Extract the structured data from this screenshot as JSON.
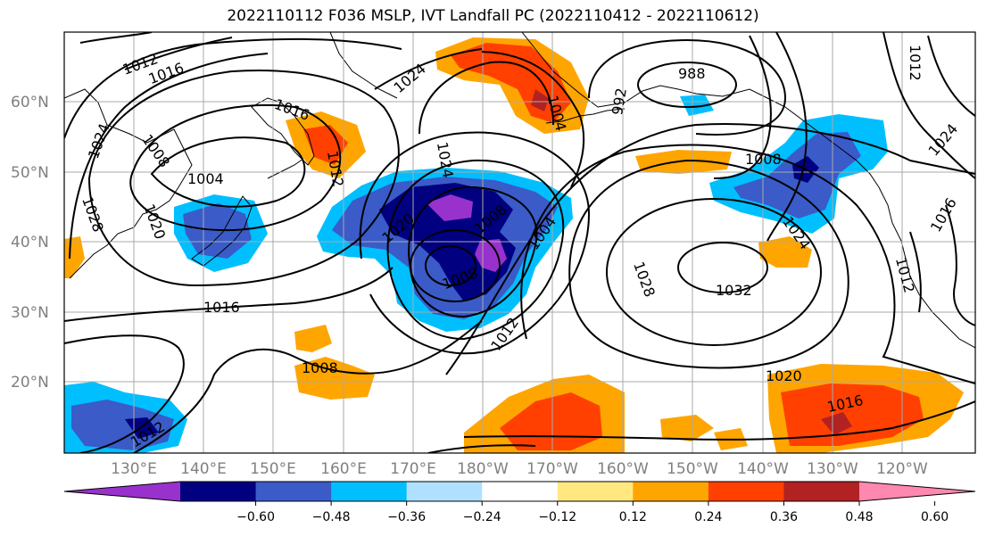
{
  "title": "2022110112 F036 MSLP, IVT Landfall PC (2022110412 - 2022110612)",
  "lat_labels": [
    "60°N",
    "50°N",
    "40°N",
    "30°N",
    "20°N"
  ],
  "lon_labels": [
    "130°E",
    "140°E",
    "150°E",
    "160°E",
    "170°E",
    "180°W",
    "170°W",
    "160°W",
    "150°W",
    "140°W",
    "130°W",
    "120°W"
  ],
  "colorbar": {
    "colors": [
      "#9932cc",
      "#000080",
      "#3a5bc8",
      "#00bfff",
      "#b0e0ff",
      "#ffffff",
      "#ffe880",
      "#ffa500",
      "#ff4000",
      "#b22222",
      "#ff88b0"
    ],
    "tick_labels": [
      "−0.60",
      "−0.48",
      "−0.36",
      "−0.24",
      "−0.12",
      "0.12",
      "0.24",
      "0.36",
      "0.48",
      "0.60"
    ],
    "extend": "both"
  },
  "isobar_labels": [
    "1032",
    "1028",
    "1024",
    "1020",
    "1016",
    "1016",
    "1012",
    "1008",
    "1008",
    "1004",
    "1004",
    "1008",
    "1012",
    "988",
    "992",
    "1004",
    "1008",
    "1024",
    "1012",
    "1016",
    "1020",
    "1024",
    "1028",
    "1024",
    "1020",
    "1016",
    "1012",
    "1008",
    "1012",
    "1016",
    "1012",
    "1024"
  ]
}
